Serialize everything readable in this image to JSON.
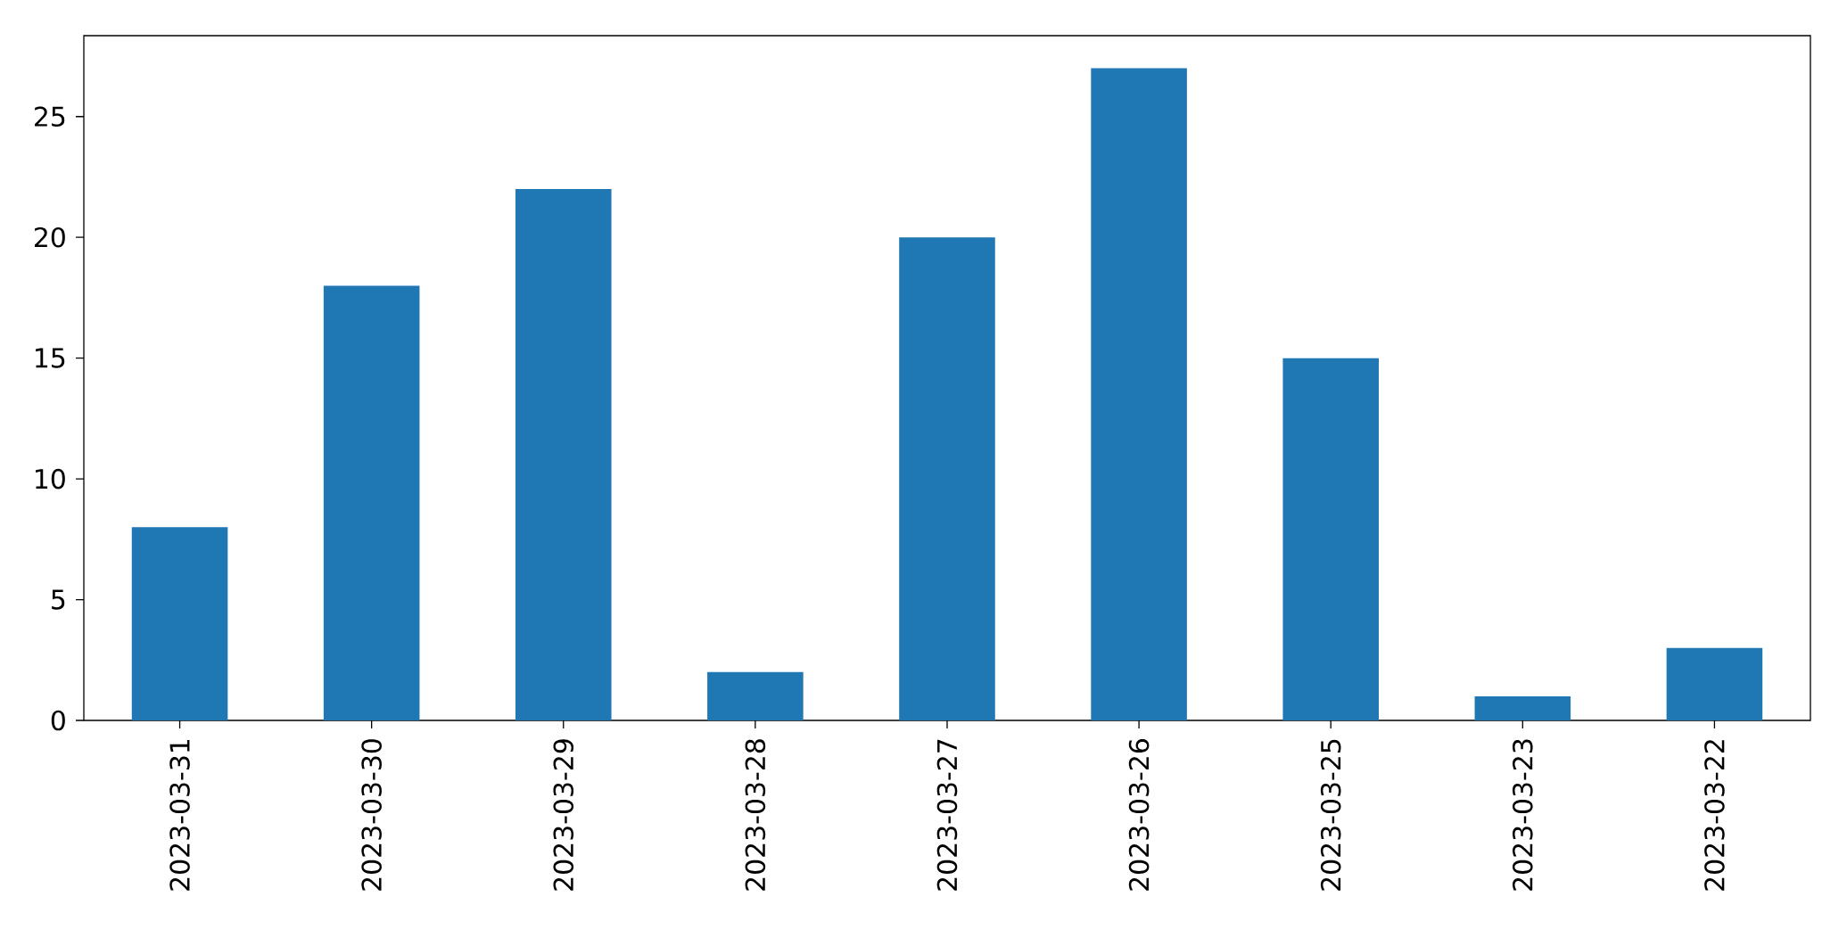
{
  "chart_data": {
    "type": "bar",
    "categories": [
      "2023-03-31",
      "2023-03-30",
      "2023-03-29",
      "2023-03-28",
      "2023-03-27",
      "2023-03-26",
      "2023-03-25",
      "2023-03-23",
      "2023-03-22"
    ],
    "values": [
      8,
      18,
      22,
      2,
      20,
      27,
      15,
      1,
      3
    ],
    "color": "#1f77b4",
    "ylim": [
      0,
      28.35
    ],
    "yticks": [
      0,
      5,
      10,
      15,
      20,
      25
    ]
  }
}
